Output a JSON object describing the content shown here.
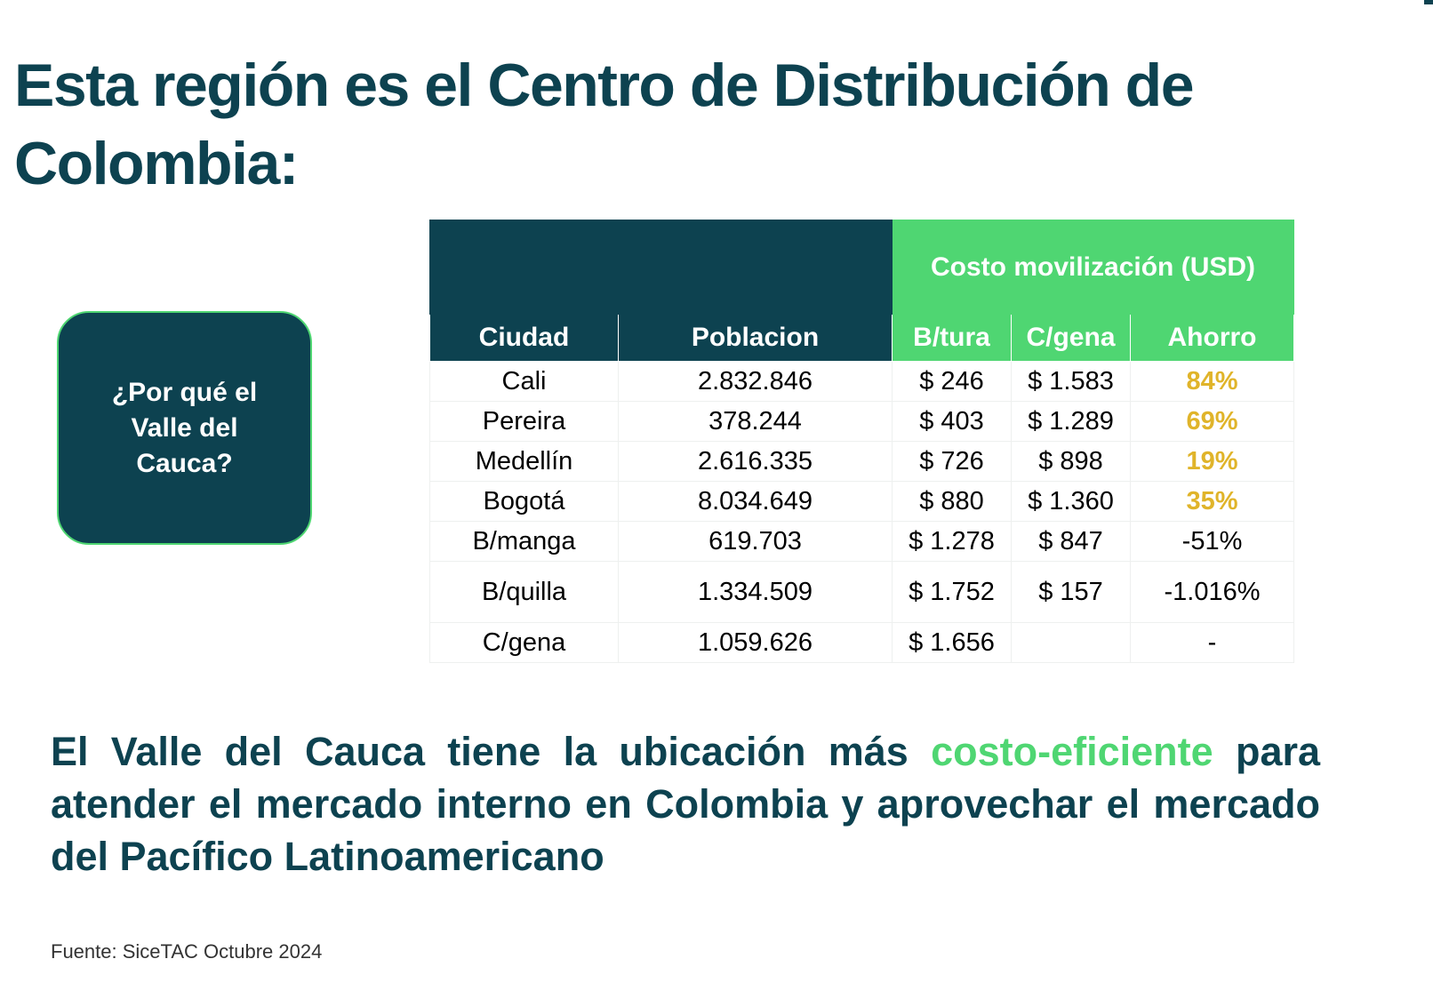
{
  "title": "Esta región es el Centro de Distribución de Colombia:",
  "question_box": "¿Por qué el Valle del Cauca?",
  "table": {
    "group_header": "Costo movilización (USD)",
    "columns": [
      "Ciudad",
      "Poblacion",
      "B/tura",
      "C/gena",
      "Ahorro"
    ],
    "rows": [
      {
        "ciudad": "Cali",
        "poblacion": "2.832.846",
        "btura": "$ 246",
        "cgena": "$ 1.583",
        "ahorro": "84%"
      },
      {
        "ciudad": "Pereira",
        "poblacion": "378.244",
        "btura": "$ 403",
        "cgena": "$ 1.289",
        "ahorro": "69%"
      },
      {
        "ciudad": "Medellín",
        "poblacion": "2.616.335",
        "btura": "$ 726",
        "cgena": "$ 898",
        "ahorro": "19%"
      },
      {
        "ciudad": "Bogotá",
        "poblacion": "8.034.649",
        "btura": "$ 880",
        "cgena": "$ 1.360",
        "ahorro": "35%"
      },
      {
        "ciudad": "B/manga",
        "poblacion": "619.703",
        "btura": "$ 1.278",
        "cgena": "$ 847",
        "ahorro": "-51%"
      },
      {
        "ciudad": "B/quilla",
        "poblacion": "1.334.509",
        "btura": "$ 1.752",
        "cgena": "$ 157",
        "ahorro": "-1.016%"
      },
      {
        "ciudad": "C/gena",
        "poblacion": "1.059.626",
        "btura": "$ 1.656",
        "cgena": "",
        "ahorro": "-"
      }
    ]
  },
  "conclusion": {
    "before": "El Valle del Cauca tiene la ubicación más ",
    "highlight": "costo-eficiente",
    "after": " para atender el mercado interno en Colombia y aprovechar el mercado del Pacífico Latinoamericano"
  },
  "source": "Fuente: SiceTAC  Octubre 2024",
  "colors": {
    "primary": "#0d4250",
    "accent": "#4fd672",
    "positive": "#e0b42a"
  }
}
